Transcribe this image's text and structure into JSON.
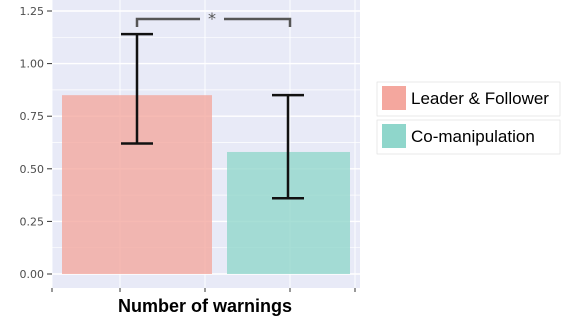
{
  "chart_data": {
    "type": "bar",
    "title": "",
    "xlabel": "Number of warnings",
    "ylabel": "",
    "ylim": [
      -0.05,
      1.25
    ],
    "yticks": [
      0.0,
      0.25,
      0.5,
      0.75,
      1.0,
      1.25
    ],
    "ytick_labels": [
      "0.00",
      "0.25",
      "0.50",
      "0.75",
      "1.00",
      "1.25"
    ],
    "grid": true,
    "legend_position": "right",
    "series": [
      {
        "name": "Leader & Follower",
        "value": 0.85,
        "error_low": 0.62,
        "error_high": 1.14,
        "color": "#F4A79E"
      },
      {
        "name": "Co-manipulation",
        "value": 0.58,
        "error_low": 0.36,
        "error_high": 0.85,
        "color": "#8FD6CB"
      }
    ],
    "significance": {
      "label": "*",
      "between": [
        0,
        1
      ]
    },
    "colors": {
      "panel": "#E8EAF7",
      "grid": "#FFFFFF",
      "error_bar": "#111111",
      "bracket": "#555555"
    }
  }
}
